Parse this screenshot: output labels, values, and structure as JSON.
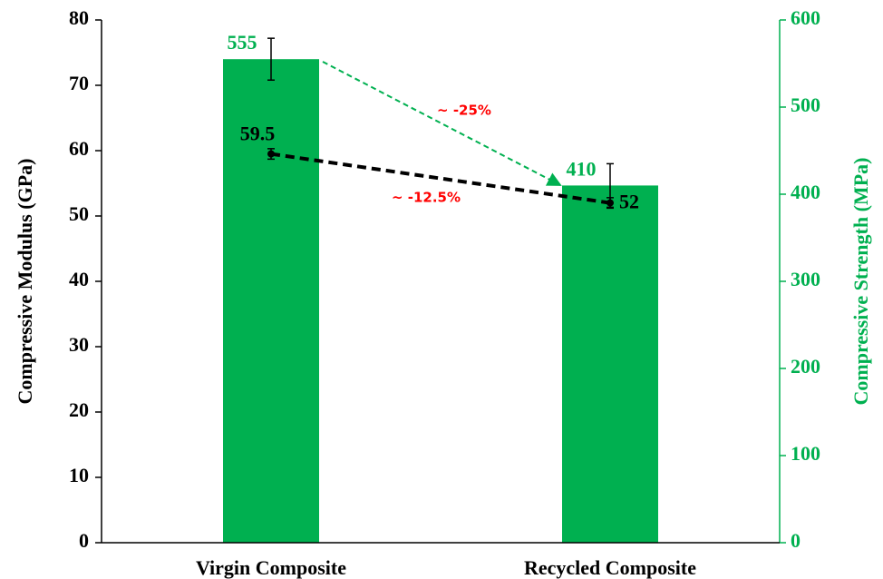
{
  "chart_data": {
    "type": "bar",
    "categories": [
      "Virgin Composite",
      "Recycled Composite"
    ],
    "ylabel": "Compressive Modulus (GPa)",
    "y2label": "Compressive Strength (MPa)",
    "ylim": [
      0,
      80
    ],
    "yticks": [
      0,
      10,
      20,
      30,
      40,
      50,
      60,
      70,
      80
    ],
    "y2lim": [
      0,
      600
    ],
    "y2ticks": [
      0,
      100,
      200,
      300,
      400,
      500,
      600
    ],
    "series": [
      {
        "type": "bar",
        "axis": "y2",
        "color": "#00b050",
        "values": [
          555,
          410
        ],
        "errors": [
          24,
          25
        ]
      },
      {
        "type": "line",
        "axis": "y",
        "color": "#000000",
        "values": [
          59.5,
          52
        ],
        "errors": [
          0.8,
          0.8
        ]
      }
    ],
    "annotations": [
      "~ -25%",
      "~ -12.5%"
    ]
  }
}
